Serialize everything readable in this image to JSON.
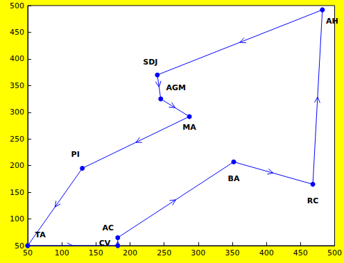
{
  "chart_data": {
    "type": "line",
    "x": [
      50,
      182,
      182,
      352,
      468,
      482,
      240,
      245,
      287,
      130,
      50
    ],
    "values": [
      50,
      50,
      65,
      207,
      165,
      492,
      370,
      325,
      292,
      195,
      50
    ],
    "labels": [
      "TA",
      "CV",
      "AC",
      "BA",
      "RC",
      "AH",
      "SDJ",
      "AGM",
      "MA",
      "PI",
      null
    ],
    "color": "#0000ff",
    "marker": "circle",
    "line_style": "solid",
    "xlim": [
      50,
      500
    ],
    "xticks": [
      50,
      100,
      150,
      200,
      250,
      300,
      350,
      400,
      450,
      500
    ],
    "ylim": [
      50,
      500
    ],
    "yticks": [
      50,
      100,
      150,
      200,
      250,
      300,
      350,
      400,
      450,
      500
    ],
    "grid": false
  }
}
